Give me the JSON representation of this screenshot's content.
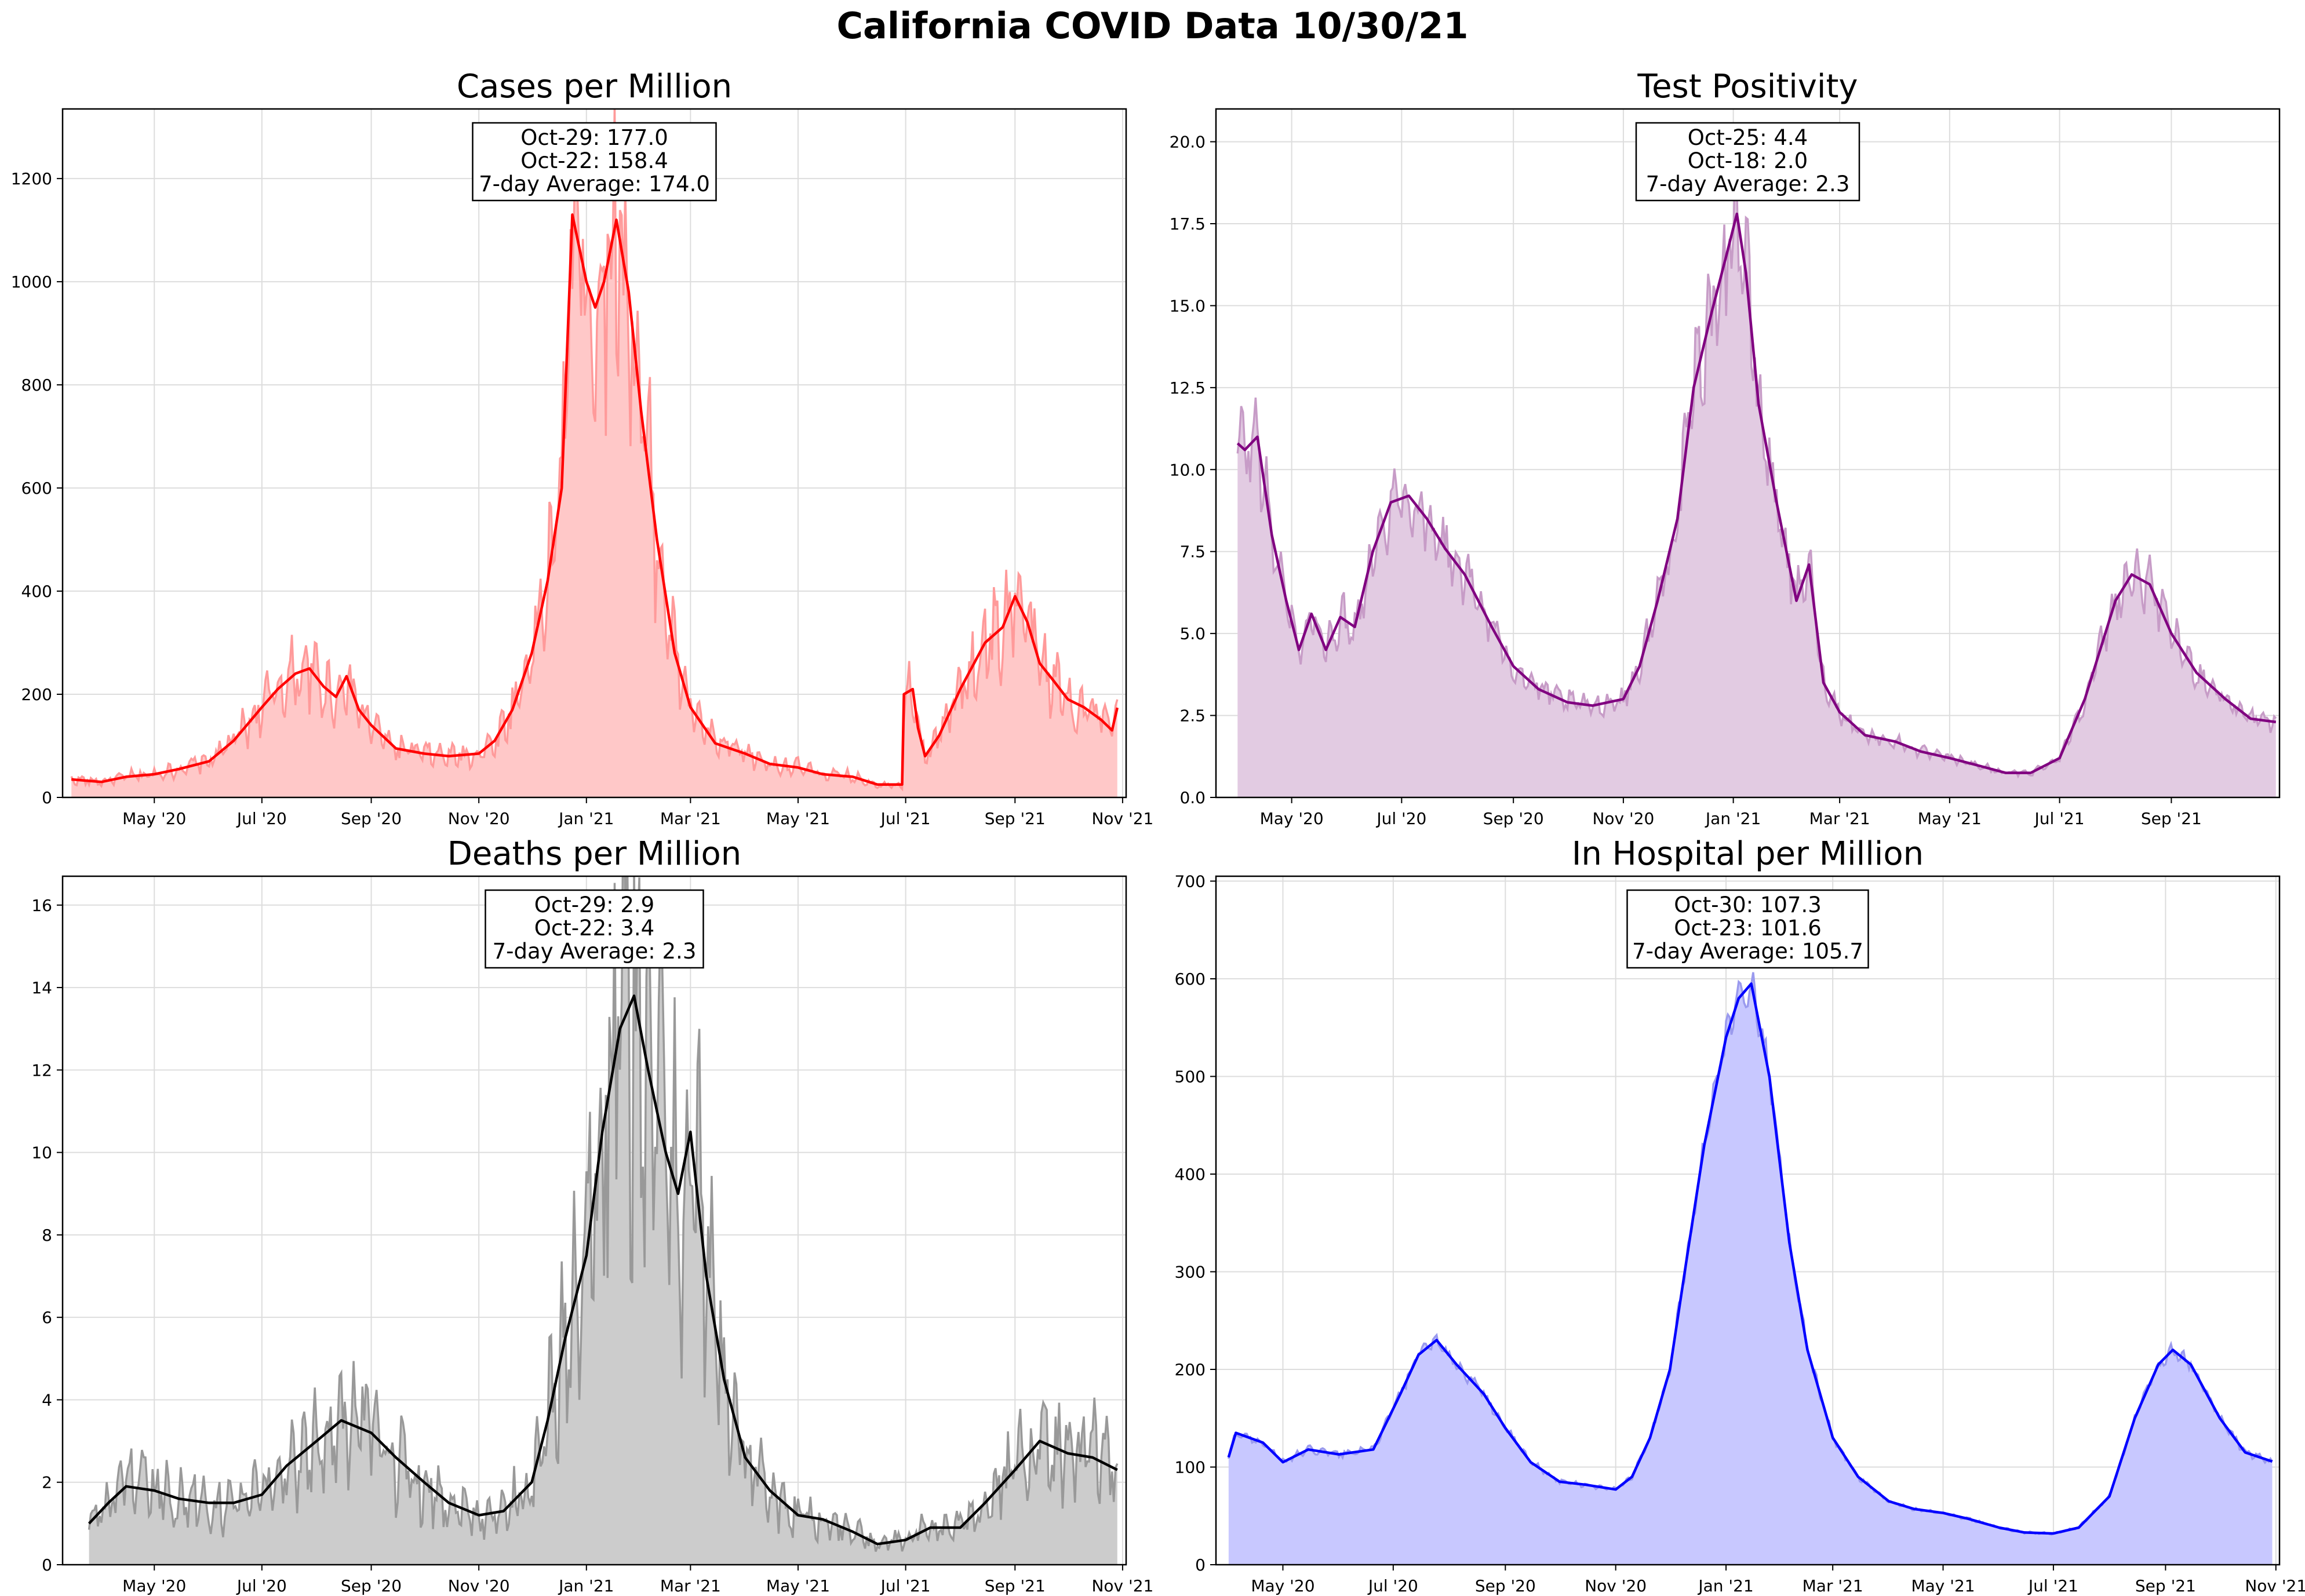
{
  "title": "California COVID Data 10/30/21",
  "chart_data": [
    {
      "type": "area",
      "title": "Cases per Million",
      "color": "#ff0000",
      "fill": "#ffc8c8",
      "raw_color": "#ff9a9a",
      "x_ticks": [
        "May '20",
        "Jul '20",
        "Sep '20",
        "Nov '20",
        "Jan '21",
        "Mar '21",
        "May '21",
        "Jul '21",
        "Sep '21",
        "Nov '21"
      ],
      "x_tick_dates": [
        "2020-05-01",
        "2020-07-01",
        "2020-09-01",
        "2020-11-01",
        "2021-01-01",
        "2021-03-01",
        "2021-05-01",
        "2021-07-01",
        "2021-09-01",
        "2021-11-01"
      ],
      "xlim": [
        "2020-03-10",
        "2021-11-03"
      ],
      "y_ticks": [
        0,
        200,
        400,
        600,
        800,
        1000,
        1200
      ],
      "ylim": [
        0,
        1335
      ],
      "grid": true,
      "annotation": [
        "Oct-29: 177.0",
        "Oct-22: 158.4",
        "7-day Average: 174.0"
      ],
      "series": [
        {
          "x": [
            "2020-03-15",
            "2020-04-01",
            "2020-04-15",
            "2020-05-01",
            "2020-05-15",
            "2020-06-01",
            "2020-06-15",
            "2020-07-01",
            "2020-07-10",
            "2020-07-20",
            "2020-07-28",
            "2020-08-05",
            "2020-08-12",
            "2020-08-18",
            "2020-08-25",
            "2020-09-01",
            "2020-09-15",
            "2020-10-01",
            "2020-10-15",
            "2020-11-01",
            "2020-11-10",
            "2020-11-20",
            "2020-12-01",
            "2020-12-10",
            "2020-12-18",
            "2020-12-24",
            "2021-01-01",
            "2021-01-06",
            "2021-01-11",
            "2021-01-18",
            "2021-01-25",
            "2021-02-01",
            "2021-02-10",
            "2021-02-20",
            "2021-03-01",
            "2021-03-15",
            "2021-04-01",
            "2021-04-15",
            "2021-05-01",
            "2021-05-15",
            "2021-06-01",
            "2021-06-15",
            "2021-06-29",
            "2021-06-30",
            "2021-07-05",
            "2021-07-08",
            "2021-07-12",
            "2021-07-20",
            "2021-08-01",
            "2021-08-15",
            "2021-08-25",
            "2021-09-01",
            "2021-09-08",
            "2021-09-15",
            "2021-09-22",
            "2021-10-01",
            "2021-10-10",
            "2021-10-20",
            "2021-10-26",
            "2021-10-29"
          ],
          "values": [
            35,
            30,
            40,
            45,
            55,
            70,
            110,
            175,
            210,
            240,
            250,
            215,
            195,
            235,
            170,
            140,
            95,
            85,
            80,
            85,
            110,
            170,
            280,
            420,
            600,
            1130,
            1000,
            950,
            1000,
            1120,
            980,
            750,
            500,
            280,
            175,
            105,
            85,
            65,
            58,
            45,
            40,
            25,
            25,
            200,
            210,
            135,
            80,
            120,
            210,
            300,
            330,
            390,
            340,
            260,
            230,
            190,
            175,
            150,
            130,
            174
          ]
        }
      ]
    },
    {
      "type": "area",
      "title": "Test Positivity",
      "color": "#800080",
      "fill": "#e2cbe2",
      "raw_color": "#c79cc7",
      "x_ticks": [
        "May '20",
        "Jul '20",
        "Sep '20",
        "Nov '20",
        "Jan '21",
        "Mar '21",
        "May '21",
        "Jul '21",
        "Sep '21"
      ],
      "x_tick_dates": [
        "2020-05-01",
        "2020-07-01",
        "2020-09-01",
        "2020-11-01",
        "2021-01-01",
        "2021-03-01",
        "2021-05-01",
        "2021-07-01",
        "2021-09-01"
      ],
      "xlim": [
        "2020-03-20",
        "2021-10-31"
      ],
      "y_ticks": [
        0.0,
        2.5,
        5.0,
        7.5,
        10.0,
        12.5,
        15.0,
        17.5,
        20.0
      ],
      "y_tick_labels": [
        "0.0",
        "2.5",
        "5.0",
        "7.5",
        "10.0",
        "12.5",
        "15.0",
        "17.5",
        "20.0"
      ],
      "ylim": [
        0,
        21
      ],
      "grid": true,
      "annotation": [
        "Oct-25: 4.4",
        "Oct-18: 2.0",
        "7-day Average: 2.3"
      ],
      "series": [
        {
          "x": [
            "2020-04-01",
            "2020-04-05",
            "2020-04-12",
            "2020-04-20",
            "2020-04-28",
            "2020-05-05",
            "2020-05-12",
            "2020-05-20",
            "2020-05-28",
            "2020-06-05",
            "2020-06-15",
            "2020-06-25",
            "2020-07-05",
            "2020-07-15",
            "2020-07-25",
            "2020-08-05",
            "2020-08-20",
            "2020-09-01",
            "2020-09-15",
            "2020-10-01",
            "2020-10-15",
            "2020-11-01",
            "2020-11-10",
            "2020-11-20",
            "2020-12-01",
            "2020-12-10",
            "2020-12-20",
            "2020-12-28",
            "2021-01-03",
            "2021-01-08",
            "2021-01-15",
            "2021-01-25",
            "2021-02-05",
            "2021-02-12",
            "2021-02-20",
            "2021-03-01",
            "2021-03-15",
            "2021-04-01",
            "2021-04-15",
            "2021-05-01",
            "2021-05-15",
            "2021-06-01",
            "2021-06-15",
            "2021-07-01",
            "2021-07-15",
            "2021-08-01",
            "2021-08-10",
            "2021-08-20",
            "2021-09-01",
            "2021-09-15",
            "2021-10-01",
            "2021-10-15",
            "2021-10-29"
          ],
          "values": [
            10.8,
            10.6,
            11.0,
            8.0,
            6.0,
            4.5,
            5.6,
            4.5,
            5.5,
            5.2,
            7.5,
            9.0,
            9.2,
            8.5,
            7.6,
            6.8,
            5.2,
            4.0,
            3.3,
            2.9,
            2.8,
            3.0,
            4.0,
            6.0,
            8.5,
            12.5,
            14.8,
            16.5,
            17.8,
            16.0,
            12.0,
            9.0,
            6.0,
            7.1,
            3.5,
            2.6,
            1.9,
            1.7,
            1.4,
            1.2,
            1.0,
            0.75,
            0.75,
            1.2,
            3.0,
            6.0,
            6.8,
            6.5,
            5.0,
            3.8,
            3.0,
            2.4,
            2.3
          ]
        }
      ]
    },
    {
      "type": "area",
      "title": "Deaths per Million",
      "color": "#000000",
      "fill": "#cccccc",
      "raw_color": "#999999",
      "x_ticks": [
        "May '20",
        "Jul '20",
        "Sep '20",
        "Nov '20",
        "Jan '21",
        "Mar '21",
        "May '21",
        "Jul '21",
        "Sep '21",
        "Nov '21"
      ],
      "x_tick_dates": [
        "2020-05-01",
        "2020-07-01",
        "2020-09-01",
        "2020-11-01",
        "2021-01-01",
        "2021-03-01",
        "2021-05-01",
        "2021-07-01",
        "2021-09-01",
        "2021-11-01"
      ],
      "xlim": [
        "2020-03-10",
        "2021-11-03"
      ],
      "y_ticks": [
        0,
        2,
        4,
        6,
        8,
        10,
        12,
        14,
        16
      ],
      "ylim": [
        0,
        16.7
      ],
      "grid": true,
      "annotation": [
        "Oct-29: 2.9",
        "Oct-22: 3.4",
        "7-day Average: 2.3"
      ],
      "series": [
        {
          "x": [
            "2020-03-25",
            "2020-04-05",
            "2020-04-15",
            "2020-05-01",
            "2020-05-15",
            "2020-06-01",
            "2020-06-15",
            "2020-07-01",
            "2020-07-15",
            "2020-08-01",
            "2020-08-15",
            "2020-09-01",
            "2020-09-15",
            "2020-10-01",
            "2020-10-15",
            "2020-11-01",
            "2020-11-15",
            "2020-12-01",
            "2020-12-10",
            "2020-12-20",
            "2021-01-01",
            "2021-01-10",
            "2021-01-20",
            "2021-01-28",
            "2021-02-05",
            "2021-02-15",
            "2021-02-22",
            "2021-03-01",
            "2021-03-10",
            "2021-03-20",
            "2021-04-01",
            "2021-04-15",
            "2021-05-01",
            "2021-05-15",
            "2021-06-01",
            "2021-06-15",
            "2021-07-01",
            "2021-07-15",
            "2021-08-01",
            "2021-08-15",
            "2021-09-01",
            "2021-09-15",
            "2021-10-01",
            "2021-10-15",
            "2021-10-29"
          ],
          "values": [
            1.0,
            1.5,
            1.9,
            1.8,
            1.6,
            1.5,
            1.5,
            1.7,
            2.4,
            3.0,
            3.5,
            3.2,
            2.6,
            2.0,
            1.5,
            1.2,
            1.3,
            2.0,
            3.5,
            5.5,
            7.5,
            10.5,
            13.0,
            13.8,
            12.0,
            10.0,
            9.0,
            10.5,
            7.0,
            4.5,
            2.6,
            1.8,
            1.2,
            1.1,
            0.8,
            0.5,
            0.6,
            0.9,
            0.9,
            1.5,
            2.3,
            3.0,
            2.7,
            2.6,
            2.3
          ]
        }
      ]
    },
    {
      "type": "area",
      "title": "In Hospital per Million",
      "color": "#0000ff",
      "fill": "#c8c8ff",
      "raw_color": "#9a9aee",
      "x_ticks": [
        "May '20",
        "Jul '20",
        "Sep '20",
        "Nov '20",
        "Jan '21",
        "Mar '21",
        "May '21",
        "Jul '21",
        "Sep '21",
        "Nov '21"
      ],
      "x_tick_dates": [
        "2020-05-01",
        "2020-07-01",
        "2020-09-01",
        "2020-11-01",
        "2021-01-01",
        "2021-03-01",
        "2021-05-01",
        "2021-07-01",
        "2021-09-01",
        "2021-11-01"
      ],
      "xlim": [
        "2020-03-25",
        "2021-11-03"
      ],
      "y_ticks": [
        0,
        100,
        200,
        300,
        400,
        500,
        600,
        700
      ],
      "ylim": [
        0,
        705
      ],
      "grid": true,
      "annotation": [
        "Oct-30: 107.3",
        "Oct-23: 101.6",
        "7-day Average: 105.7"
      ],
      "series": [
        {
          "x": [
            "2020-04-01",
            "2020-04-05",
            "2020-04-20",
            "2020-05-01",
            "2020-05-15",
            "2020-06-01",
            "2020-06-20",
            "2020-07-05",
            "2020-07-15",
            "2020-07-25",
            "2020-08-05",
            "2020-08-20",
            "2020-09-01",
            "2020-09-15",
            "2020-10-01",
            "2020-10-15",
            "2020-11-01",
            "2020-11-10",
            "2020-11-20",
            "2020-12-01",
            "2020-12-10",
            "2020-12-20",
            "2021-01-01",
            "2021-01-08",
            "2021-01-15",
            "2021-01-25",
            "2021-02-05",
            "2021-02-15",
            "2021-03-01",
            "2021-03-15",
            "2021-04-01",
            "2021-04-15",
            "2021-05-01",
            "2021-05-15",
            "2021-06-01",
            "2021-06-15",
            "2021-07-01",
            "2021-07-15",
            "2021-08-01",
            "2021-08-15",
            "2021-08-28",
            "2021-09-05",
            "2021-09-15",
            "2021-10-01",
            "2021-10-15",
            "2021-10-30"
          ],
          "values": [
            110,
            135,
            125,
            105,
            118,
            113,
            118,
            175,
            215,
            230,
            205,
            175,
            140,
            105,
            85,
            82,
            77,
            90,
            130,
            200,
            310,
            430,
            540,
            580,
            595,
            500,
            330,
            220,
            130,
            90,
            65,
            57,
            53,
            47,
            38,
            33,
            32,
            38,
            70,
            150,
            205,
            220,
            205,
            150,
            115,
            105.7
          ]
        }
      ]
    }
  ]
}
